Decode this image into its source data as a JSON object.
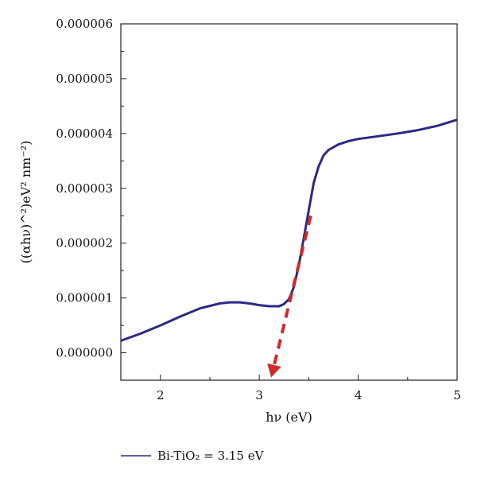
{
  "chart_data": {
    "type": "line",
    "xlabel": "hν (eV)",
    "ylabel": "((αhν)^²)eV² nm⁻²)",
    "xlim": [
      1.6,
      5.0
    ],
    "ylim": [
      -5e-07,
      6e-06
    ],
    "grid": false,
    "legend_position": "bottom-left",
    "x_ticks": [
      {
        "value": 2,
        "label": "2"
      },
      {
        "value": 3,
        "label": "3"
      },
      {
        "value": 4,
        "label": "4"
      },
      {
        "value": 5,
        "label": "5"
      }
    ],
    "y_ticks": [
      {
        "value": 0.0,
        "label": "0.000000"
      },
      {
        "value": 1e-06,
        "label": "0.000001"
      },
      {
        "value": 2e-06,
        "label": "0.000002"
      },
      {
        "value": 3e-06,
        "label": "0.000003"
      },
      {
        "value": 4e-06,
        "label": "0.000004"
      },
      {
        "value": 5e-06,
        "label": "0.000005"
      },
      {
        "value": 6e-06,
        "label": "0.000006"
      }
    ],
    "series": [
      {
        "name": "Bi-TiO₂ = 3.15 eV",
        "color": "#2b2a86",
        "x": [
          1.6,
          1.8,
          2.0,
          2.2,
          2.4,
          2.6,
          2.7,
          2.8,
          2.9,
          3.0,
          3.1,
          3.2,
          3.25,
          3.3,
          3.35,
          3.4,
          3.45,
          3.5,
          3.55,
          3.6,
          3.65,
          3.7,
          3.8,
          3.9,
          4.0,
          4.2,
          4.4,
          4.6,
          4.8,
          5.0
        ],
        "y": [
          2.2e-07,
          3.5e-07,
          5e-07,
          6.6e-07,
          8.1e-07,
          9e-07,
          9.2e-07,
          9.2e-07,
          9e-07,
          8.7e-07,
          8.5e-07,
          8.5e-07,
          8.9e-07,
          9.8e-07,
          1.2e-06,
          1.6e-06,
          2.1e-06,
          2.6e-06,
          3.1e-06,
          3.4e-06,
          3.6e-06,
          3.7e-06,
          3.8e-06,
          3.86e-06,
          3.9e-06,
          3.95e-06,
          4e-06,
          4.06e-06,
          4.14e-06,
          4.25e-06
        ]
      }
    ],
    "annotations": [
      {
        "type": "tangent-arrow",
        "color": "#d02a2a",
        "style": "dashed",
        "from": {
          "x": 3.52,
          "y": 2.5e-06
        },
        "to": {
          "x": 3.12,
          "y": -4.5e-07
        }
      }
    ],
    "legend": {
      "entries": [
        "Bi-TiO₂ = 3.15 eV"
      ]
    }
  }
}
